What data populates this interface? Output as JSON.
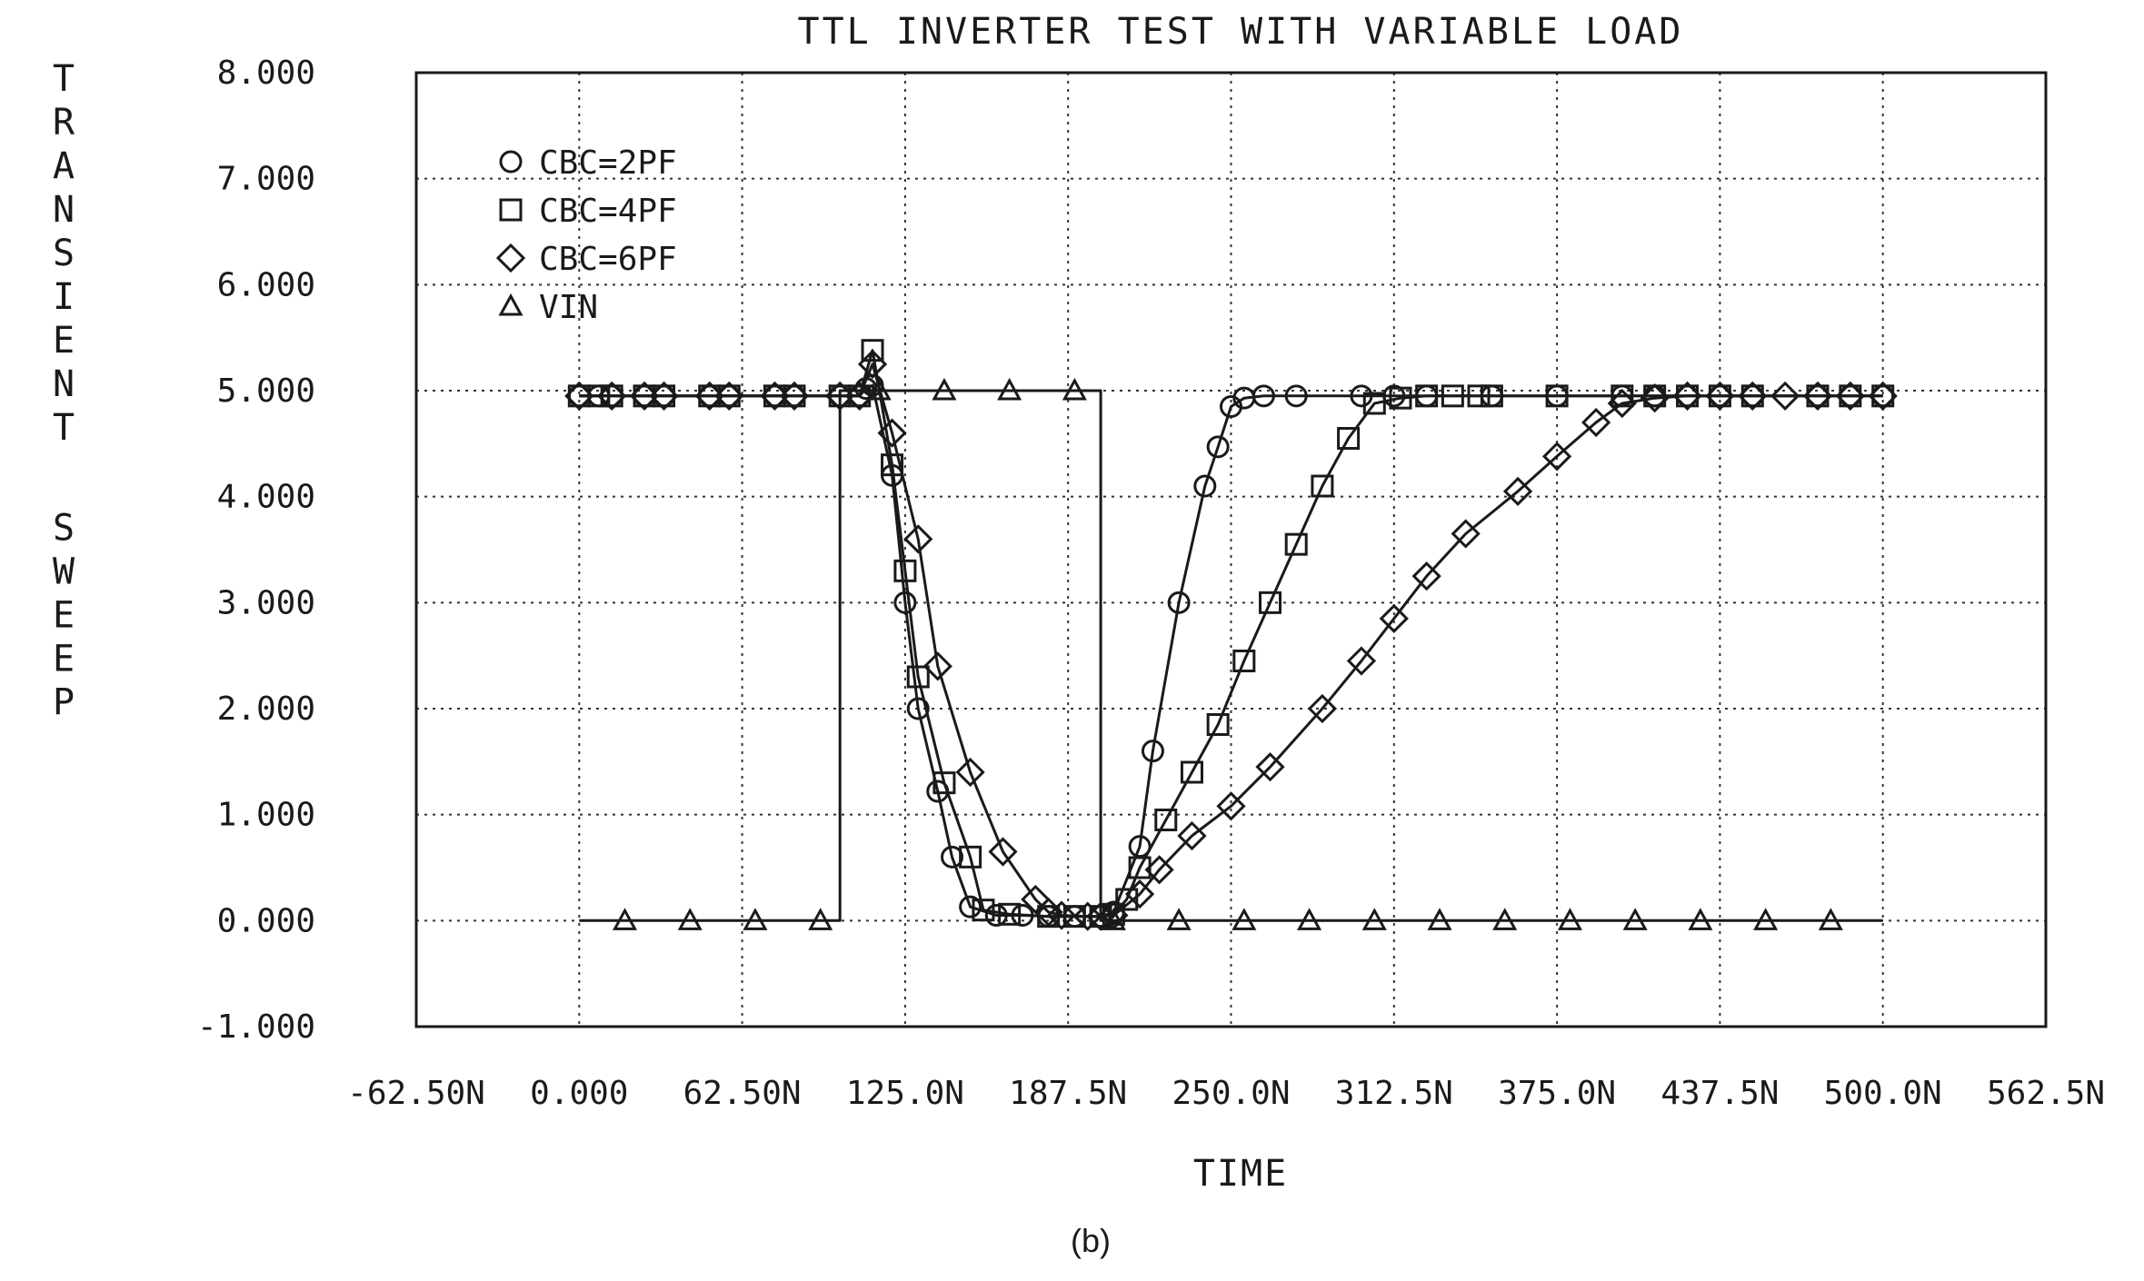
{
  "chart_data": {
    "type": "line",
    "title": "TTL INVERTER TEST WITH VARIABLE LOAD",
    "xlabel": "TIME",
    "ylabel": "TRANSIENT SWEEP",
    "caption": "(b)",
    "xlim": [
      -62.5,
      562.5
    ],
    "ylim": [
      -1.0,
      8.0
    ],
    "grid": true,
    "legend_position": "top-left",
    "xticks": [
      -62.5,
      0,
      62.5,
      125,
      187.5,
      250,
      312.5,
      375,
      437.5,
      500,
      562.5
    ],
    "xtick_labels": [
      "-62.50N",
      "0.000",
      "62.50N",
      "125.0N",
      "187.5N",
      "250.0N",
      "312.5N",
      "375.0N",
      "437.5N",
      "500.0N",
      "562.5N"
    ],
    "yticks": [
      -1,
      0,
      1,
      2,
      3,
      4,
      5,
      6,
      7,
      8
    ],
    "ytick_labels": [
      "-1.000",
      "0.000",
      "1.000",
      "2.000",
      "3.000",
      "4.000",
      "5.000",
      "6.000",
      "7.000",
      "8.000"
    ],
    "series": [
      {
        "name": "CBC=2PF",
        "marker": "circle",
        "x": [
          0,
          7.5,
          12.5,
          25,
          32.5,
          50,
          57.5,
          75,
          82.5,
          100,
          107.5,
          110,
          112.5,
          120,
          125,
          130,
          137.5,
          143,
          150,
          160,
          170,
          180,
          190,
          200,
          205,
          215,
          220,
          230,
          240,
          245,
          250,
          255,
          262.5,
          275,
          300,
          312.5,
          325,
          350,
          375,
          400,
          412.5,
          425,
          437.5,
          450,
          475,
          487.5,
          500
        ],
        "y": [
          4.95,
          4.95,
          4.95,
          4.95,
          4.95,
          4.95,
          4.95,
          4.95,
          4.95,
          4.95,
          4.95,
          5.02,
          5.05,
          4.2,
          3.0,
          2.0,
          1.22,
          0.6,
          0.13,
          0.05,
          0.05,
          0.04,
          0.04,
          0.04,
          0.08,
          0.7,
          1.6,
          3.0,
          4.1,
          4.47,
          4.85,
          4.93,
          4.95,
          4.95,
          4.95,
          4.95,
          4.95,
          4.95,
          4.95,
          4.95,
          4.95,
          4.95,
          4.95,
          4.95,
          4.95,
          4.95,
          4.95
        ]
      },
      {
        "name": "CBC=4PF",
        "marker": "square",
        "x": [
          0,
          7.5,
          12.5,
          25,
          32.5,
          50,
          57.5,
          75,
          82.5,
          100,
          107.5,
          112.5,
          120,
          125,
          130,
          140,
          150,
          155,
          165,
          180,
          190,
          200,
          205,
          210,
          215,
          225,
          235,
          245,
          255,
          265,
          275,
          285,
          295,
          305,
          315,
          325,
          335,
          345,
          350,
          375,
          400,
          412.5,
          425,
          437.5,
          450,
          475,
          487.5,
          500
        ],
        "y": [
          4.95,
          4.95,
          4.95,
          4.95,
          4.95,
          4.95,
          4.95,
          4.95,
          4.95,
          4.95,
          4.95,
          5.38,
          4.3,
          3.3,
          2.3,
          1.3,
          0.6,
          0.1,
          0.06,
          0.04,
          0.04,
          0.04,
          0.06,
          0.2,
          0.5,
          0.95,
          1.4,
          1.85,
          2.45,
          3.0,
          3.55,
          4.1,
          4.55,
          4.88,
          4.93,
          4.95,
          4.95,
          4.95,
          4.95,
          4.95,
          4.95,
          4.95,
          4.95,
          4.95,
          4.95,
          4.95,
          4.95,
          4.95
        ]
      },
      {
        "name": "CBC=6PF",
        "marker": "diamond",
        "x": [
          0,
          12.5,
          25,
          32.5,
          50,
          57.5,
          75,
          82.5,
          100,
          107.5,
          112.5,
          120,
          130,
          137.5,
          150,
          162.5,
          175,
          180,
          185,
          195,
          200,
          205,
          215,
          222.5,
          235,
          250,
          265,
          285,
          300,
          312.5,
          325,
          340,
          360,
          375,
          390,
          400,
          412.5,
          425,
          437.5,
          450,
          462.5,
          475,
          487.5,
          500
        ],
        "y": [
          4.95,
          4.95,
          4.95,
          4.95,
          4.95,
          4.95,
          4.95,
          4.95,
          4.95,
          4.95,
          5.25,
          4.6,
          3.6,
          2.4,
          1.4,
          0.65,
          0.2,
          0.08,
          0.05,
          0.04,
          0.04,
          0.05,
          0.25,
          0.48,
          0.8,
          1.08,
          1.45,
          2.0,
          2.45,
          2.85,
          3.25,
          3.65,
          4.05,
          4.38,
          4.7,
          4.88,
          4.93,
          4.95,
          4.95,
          4.95,
          4.95,
          4.95,
          4.95,
          4.95
        ]
      },
      {
        "name": "VIN",
        "marker": "triangle",
        "x": [
          0,
          17.5,
          42.5,
          67.5,
          92.5,
          100,
          100.01,
          115,
          140,
          165,
          190,
          200,
          200.01,
          230,
          255,
          280,
          305,
          330,
          355,
          380,
          405,
          430,
          455,
          480,
          500
        ],
        "y": [
          0,
          0,
          0,
          0,
          0,
          0,
          5.0,
          5.0,
          5.0,
          5.0,
          5.0,
          5.0,
          0,
          0,
          0,
          0,
          0,
          0,
          0,
          0,
          0,
          0,
          0,
          0,
          0
        ],
        "marker_x": [
          17.5,
          42.5,
          67.5,
          92.5,
          115,
          140,
          165,
          190,
          205,
          230,
          255,
          280,
          305,
          330,
          355,
          380,
          405,
          430,
          455,
          480
        ]
      }
    ]
  }
}
